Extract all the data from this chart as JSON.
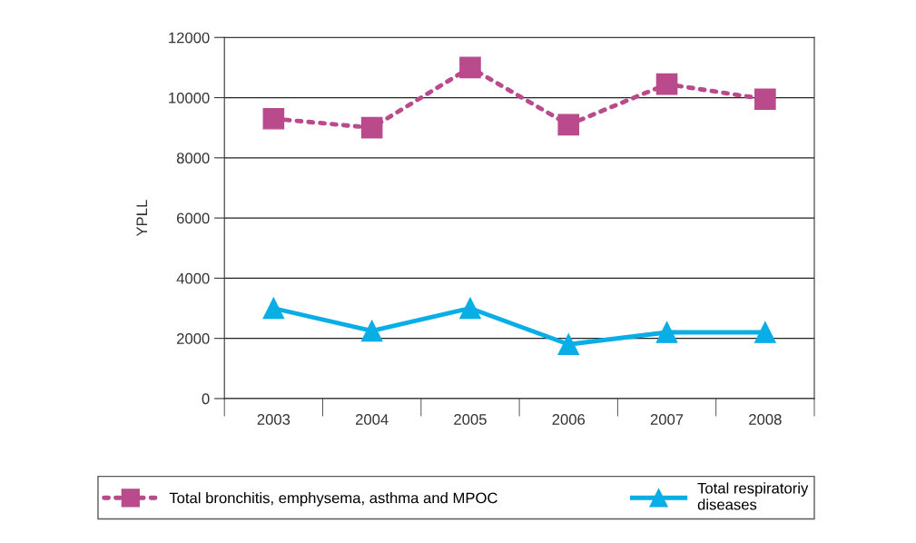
{
  "chart_data": {
    "type": "line",
    "ylabel": "YPLL",
    "categories": [
      "2003",
      "2004",
      "2005",
      "2006",
      "2007",
      "2008"
    ],
    "series": [
      {
        "name": "Total bronchitis, emphysema, asthma and MPOC",
        "color": "#b94a8b",
        "marker": "square",
        "line_style": "dotted",
        "values": [
          9300,
          9000,
          11000,
          9100,
          10450,
          9950
        ]
      },
      {
        "name": "Total respiratoriy\ndiseases",
        "color": "#0aaee6",
        "marker": "triangle",
        "line_style": "solid",
        "values": [
          3000,
          2250,
          3000,
          1800,
          2200,
          2200
        ]
      }
    ],
    "ylim": [
      0,
      12000
    ],
    "yticks": [
      0,
      2000,
      4000,
      6000,
      8000,
      10000,
      12000
    ],
    "grid": "y",
    "legend": "bottom"
  }
}
